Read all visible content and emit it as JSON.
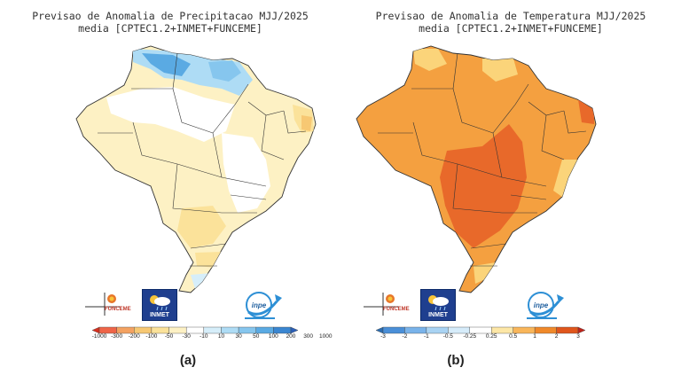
{
  "panel_a": {
    "title_line1": "Previsao de Anomalia de Precipitacao MJJ/2025",
    "title_line2": "media [CPTEC1.2+INMET+FUNCEME]",
    "colorbar_ticks": [
      "-1000",
      "-300",
      "-200",
      "-100",
      "-50",
      "-30",
      "-10",
      "10",
      "30",
      "50",
      "100",
      "200",
      "300",
      "1000"
    ],
    "colorbar_colors": [
      "#d7301f",
      "#ef6548",
      "#f4a261",
      "#f7c873",
      "#fbe29a",
      "#fdf1c4",
      "#ffffff",
      "#d6eefa",
      "#aedcf5",
      "#86c6ee",
      "#5aaae3",
      "#3a86d1",
      "#2b5fb8"
    ],
    "panel_label": "(a)",
    "logo_funceme": "FUNCEME",
    "logo_inmet": "INMET",
    "logo_inpe": "inpe"
  },
  "panel_b": {
    "title_line1": "Previsao de Anomalia de Temperatura MJJ/2025",
    "title_line2": "media [CPTEC1.2+INMET+FUNCEME]",
    "colorbar_ticks": [
      "-3",
      "-2",
      "-1",
      "-0.5",
      "-0.25",
      "0.25",
      "0.5",
      "1",
      "2",
      "3"
    ],
    "colorbar_colors": [
      "#2b6cb0",
      "#4a8fd8",
      "#79b3ea",
      "#a9d3f3",
      "#d6ecfa",
      "#ffffff",
      "#fde7a6",
      "#f9b65a",
      "#f0892a",
      "#e0561c",
      "#c0231a"
    ],
    "panel_label": "(b)",
    "logo_funceme": "FUNCEME",
    "logo_inmet": "INMET",
    "logo_inpe": "inpe"
  },
  "colors": {
    "precip_light": "#fdf1c4",
    "precip_mid": "#fbe29a",
    "precip_blue_light": "#aedcf5",
    "precip_blue": "#5aaae3",
    "temp_orange": "#f4a040",
    "temp_dark": "#e8692a",
    "temp_light": "#fbd47a",
    "state_lines": "#333333"
  }
}
